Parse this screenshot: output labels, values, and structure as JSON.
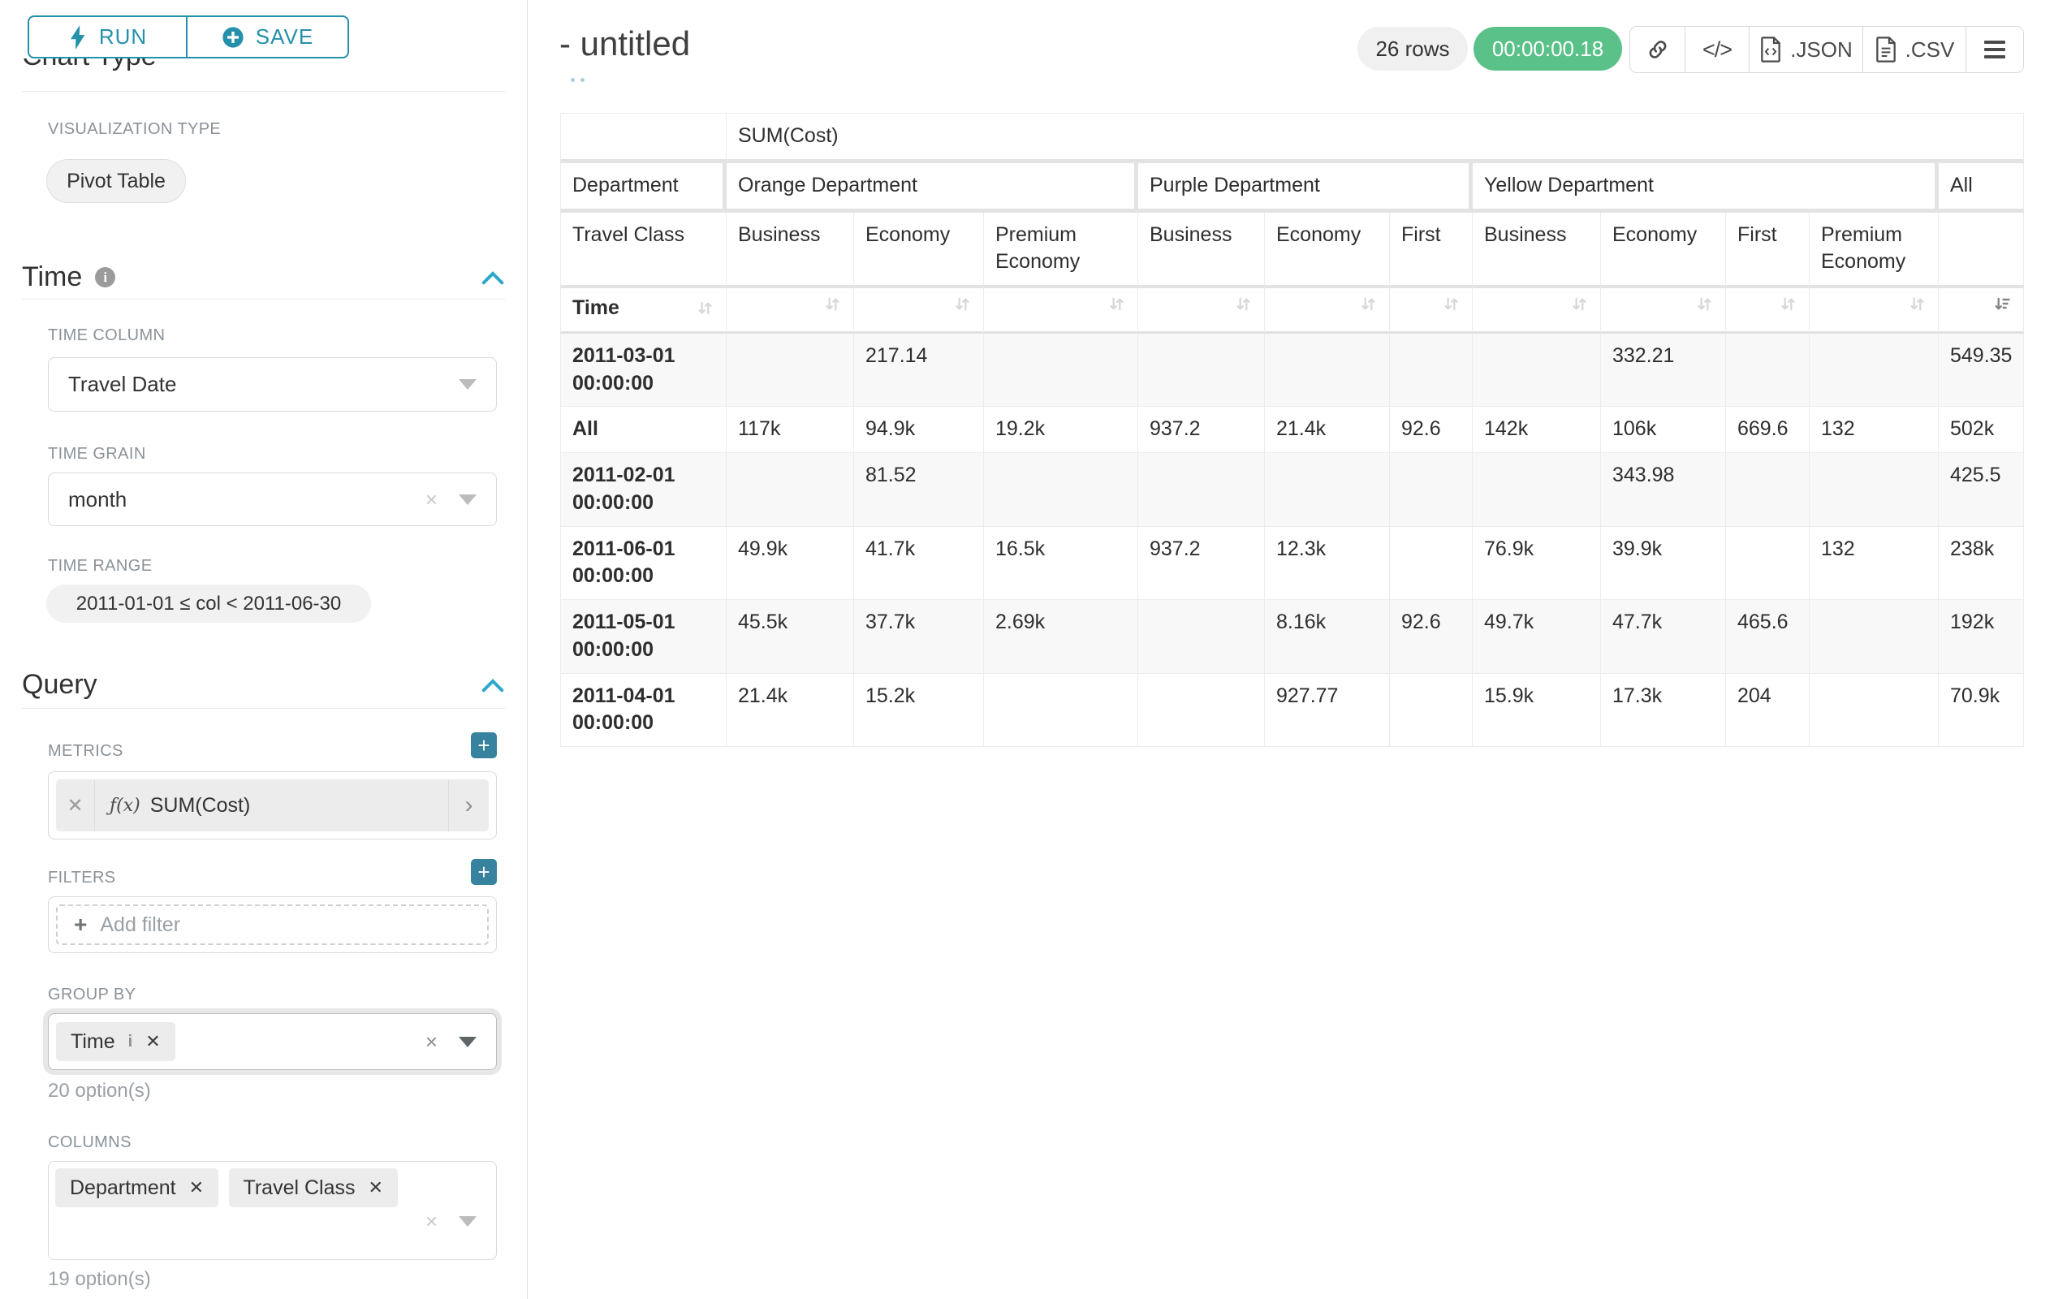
{
  "panel": {
    "run_label": "RUN",
    "save_label": "SAVE",
    "chart_type_heading": "Chart Type",
    "visualization_type_label": "VISUALIZATION TYPE",
    "visualization_type_value": "Pivot Table",
    "time_section": "Time",
    "time_column_label": "TIME COLUMN",
    "time_column_value": "Travel Date",
    "time_grain_label": "TIME GRAIN",
    "time_grain_value": "month",
    "time_range_label": "TIME RANGE",
    "time_range_value": "2011-01-01 ≤ col < 2011-06-30",
    "query_section": "Query",
    "metrics_label": "METRICS",
    "metric_fx": "ƒ(x)",
    "metric_value": "SUM(Cost)",
    "filters_label": "FILTERS",
    "add_filter_label": "Add filter",
    "group_by_label": "GROUP BY",
    "group_by_chips": [
      "Time"
    ],
    "group_by_hint": "20 option(s)",
    "columns_label": "COLUMNS",
    "columns_chips": [
      "Department",
      "Travel Class"
    ],
    "columns_hint": "19 option(s)"
  },
  "header": {
    "title": "- untitled",
    "row_count": "26 rows",
    "query_time": "00:00:00.18",
    "export_json_label": ".JSON",
    "export_csv_label": ".CSV"
  },
  "colors": {
    "accent_teal": "#2590ab",
    "plus_teal": "#37829e",
    "chevron_blue": "#2da7c9",
    "success_green": "#5ac189"
  },
  "chart_data": {
    "type": "table",
    "metric": "SUM(Cost)",
    "column_axes": [
      "Department",
      "Travel Class"
    ],
    "row_axis": "Time",
    "column_groups": [
      {
        "label": "Orange Department",
        "classes": [
          "Business",
          "Economy",
          "Premium Economy"
        ]
      },
      {
        "label": "Purple Department",
        "classes": [
          "Business",
          "Economy",
          "First"
        ]
      },
      {
        "label": "Yellow Department",
        "classes": [
          "Business",
          "Economy",
          "First",
          "Premium Economy"
        ]
      },
      {
        "label": "All",
        "classes": [
          ""
        ]
      }
    ],
    "sorted_column": "All",
    "sort_direction": "descending",
    "rows": [
      {
        "label": "2011-03-01 00:00:00",
        "values": [
          "",
          "217.14",
          "",
          "",
          "",
          "",
          "",
          "332.21",
          "",
          "",
          "549.35"
        ]
      },
      {
        "label": "All",
        "values": [
          "117k",
          "94.9k",
          "19.2k",
          "937.2",
          "21.4k",
          "92.6",
          "142k",
          "106k",
          "669.6",
          "132",
          "502k"
        ]
      },
      {
        "label": "2011-02-01 00:00:00",
        "values": [
          "",
          "81.52",
          "",
          "",
          "",
          "",
          "",
          "343.98",
          "",
          "",
          "425.5"
        ]
      },
      {
        "label": "2011-06-01 00:00:00",
        "values": [
          "49.9k",
          "41.7k",
          "16.5k",
          "937.2",
          "12.3k",
          "",
          "76.9k",
          "39.9k",
          "",
          "132",
          "238k"
        ]
      },
      {
        "label": "2011-05-01 00:00:00",
        "values": [
          "45.5k",
          "37.7k",
          "2.69k",
          "",
          "8.16k",
          "92.6",
          "49.7k",
          "47.7k",
          "465.6",
          "",
          "192k"
        ]
      },
      {
        "label": "2011-04-01 00:00:00",
        "values": [
          "21.4k",
          "15.2k",
          "",
          "",
          "927.77",
          "",
          "15.9k",
          "17.3k",
          "204",
          "",
          "70.9k"
        ]
      }
    ]
  }
}
